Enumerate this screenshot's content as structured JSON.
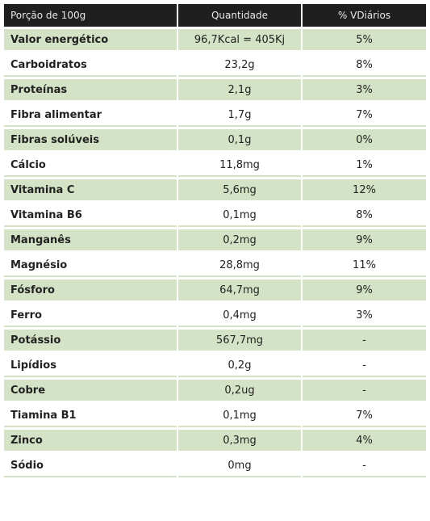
{
  "header": {
    "col1": "Porção de 100g",
    "col2": "Quantidade",
    "col3": "% VDiários"
  },
  "rows": [
    {
      "name": "Valor energético",
      "qty": "96,7Kcal = 405Kj",
      "vd": "5%"
    },
    {
      "name": "Carboidratos",
      "qty": "23,2g",
      "vd": "8%"
    },
    {
      "name": "Proteínas",
      "qty": "2,1g",
      "vd": "3%"
    },
    {
      "name": "Fibra alimentar",
      "qty": "1,7g",
      "vd": "7%"
    },
    {
      "name": "Fibras solúveis",
      "qty": "0,1g",
      "vd": "0%"
    },
    {
      "name": "Cálcio",
      "qty": "11,8mg",
      "vd": "1%"
    },
    {
      "name": "Vitamina C",
      "qty": "5,6mg",
      "vd": "12%"
    },
    {
      "name": "Vitamina B6",
      "qty": "0,1mg",
      "vd": "8%"
    },
    {
      "name": "Manganês",
      "qty": "0,2mg",
      "vd": "9%"
    },
    {
      "name": "Magnésio",
      "qty": "28,8mg",
      "vd": "11%"
    },
    {
      "name": "Fósforo",
      "qty": "64,7mg",
      "vd": "9%"
    },
    {
      "name": "Ferro",
      "qty": "0,4mg",
      "vd": "3%"
    },
    {
      "name": "Potássio",
      "qty": "567,7mg",
      "vd": "-"
    },
    {
      "name": "Lipídios",
      "qty": "0,2g",
      "vd": "-"
    },
    {
      "name": "Cobre",
      "qty": "0,2ug",
      "vd": "-"
    },
    {
      "name": "Tiamina B1",
      "qty": "0,1mg",
      "vd": "7%"
    },
    {
      "name": "Zinco",
      "qty": "0,3mg",
      "vd": "4%"
    },
    {
      "name": "Sódio",
      "qty": "0mg",
      "vd": "-"
    }
  ],
  "colors": {
    "header_bg": "#1f1f1f",
    "header_text": "#e8e8e8",
    "row_shade": "#d4e3c5",
    "row_plain": "#ffffff"
  }
}
